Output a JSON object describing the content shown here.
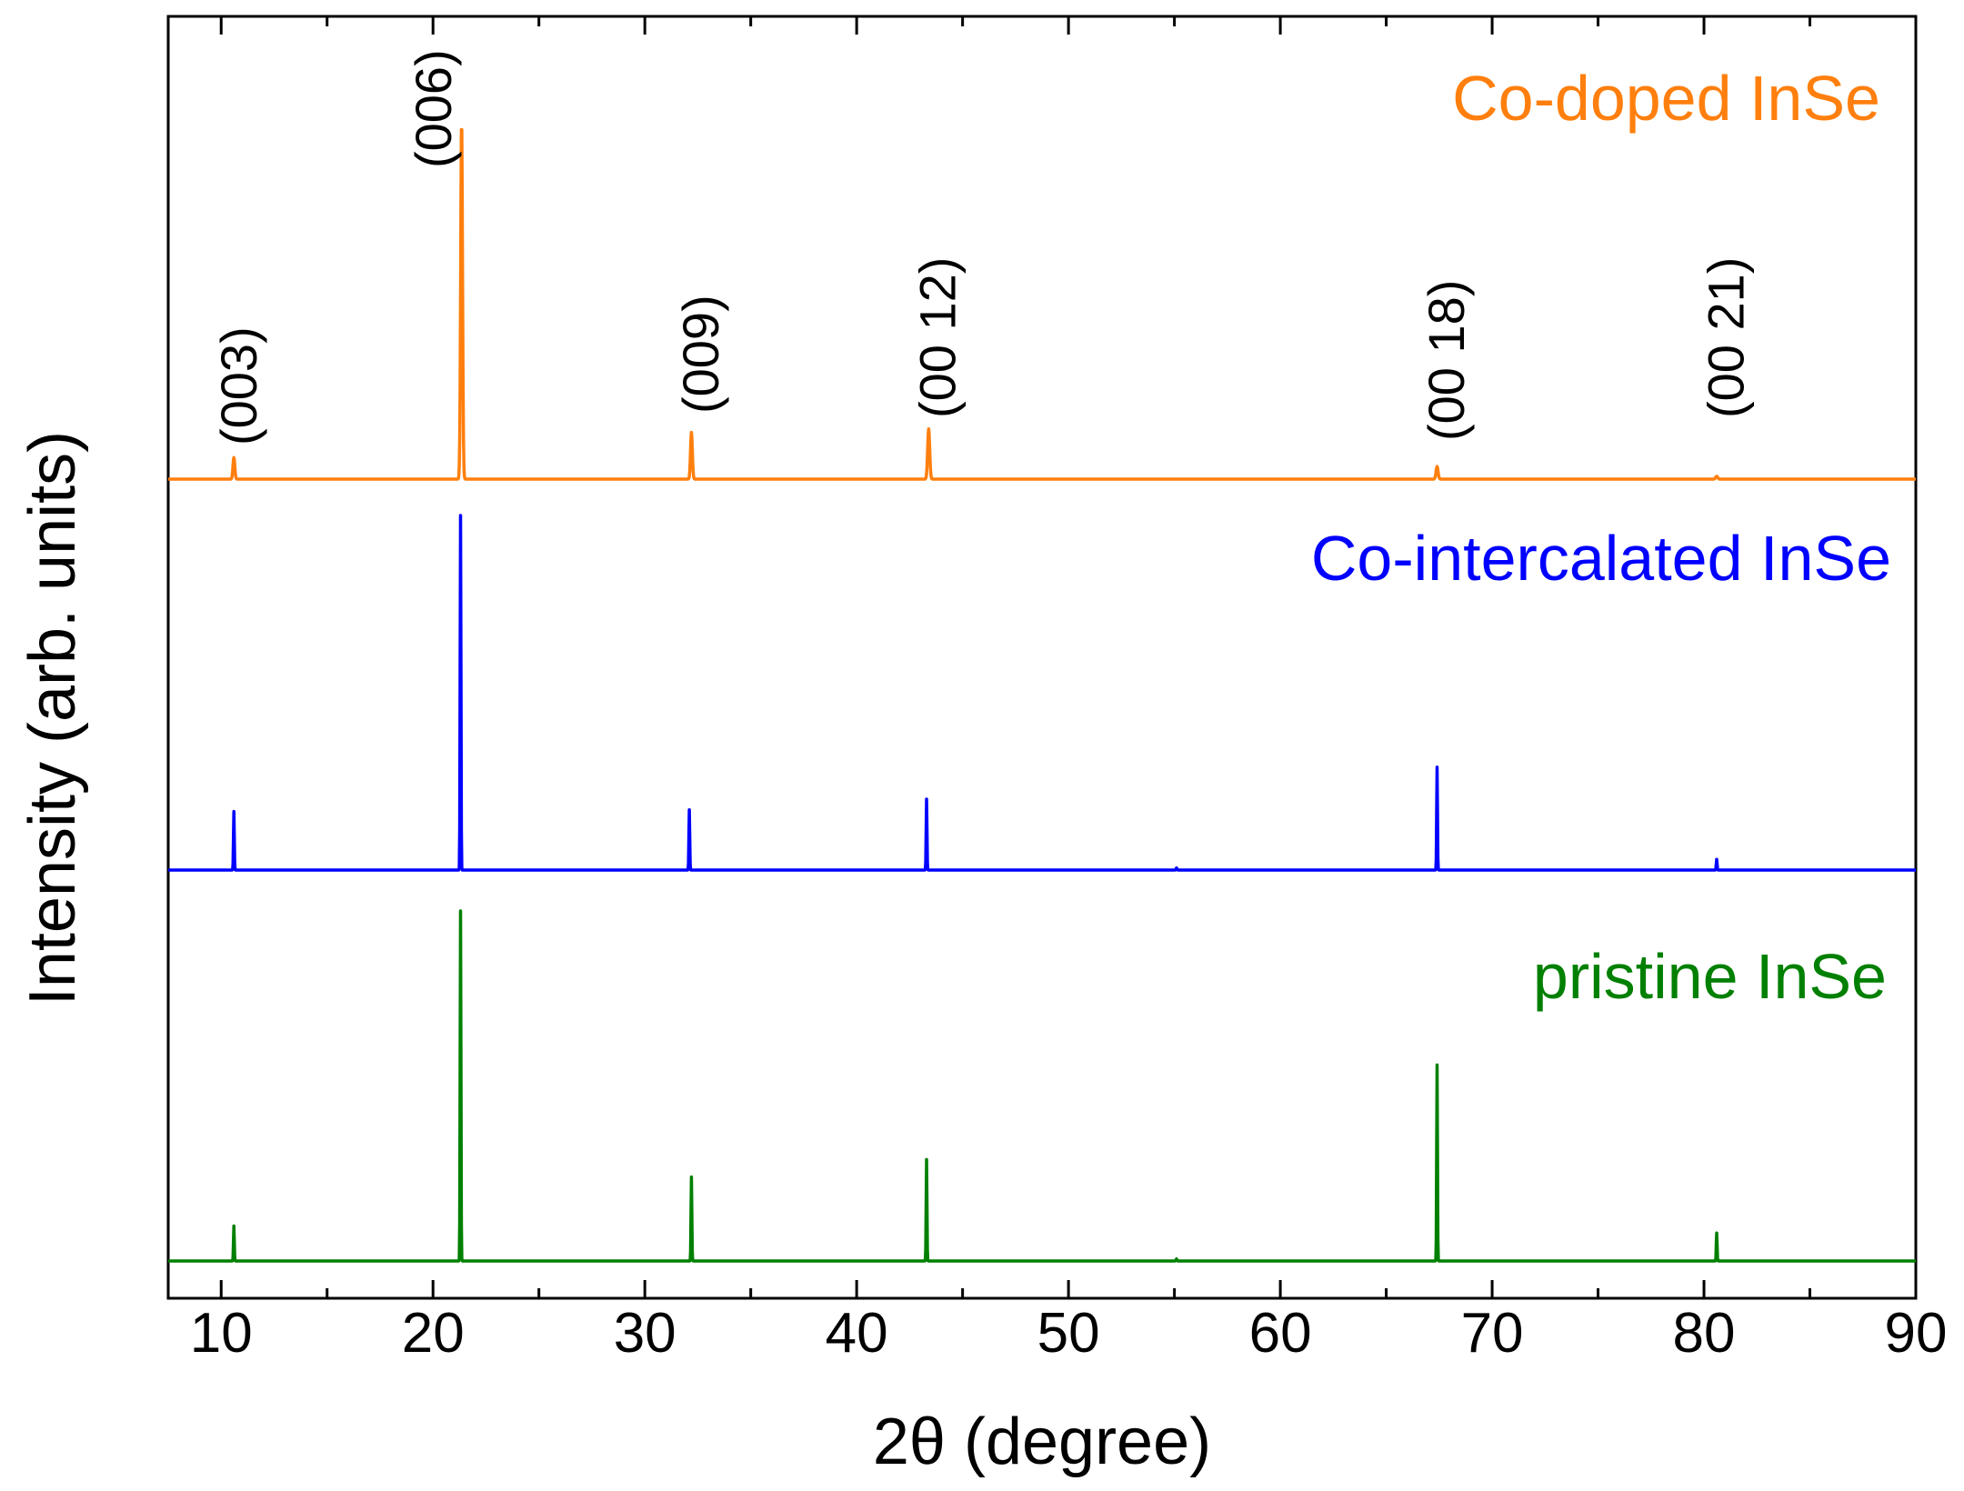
{
  "chart_data": {
    "type": "line",
    "title": "",
    "xlabel": "2θ (degree)",
    "ylabel": "Intensity (arb. units)",
    "xlim": [
      7.5,
      90
    ],
    "ylim": [
      0,
      1
    ],
    "x_ticks": [
      10,
      20,
      30,
      40,
      50,
      60,
      70,
      80,
      90
    ],
    "x_minor_ticks": [
      15,
      25,
      35,
      45,
      55,
      65,
      75,
      85
    ],
    "y_ticks": [],
    "grid": false,
    "series": [
      {
        "name": "Co-doped InSe",
        "color": "#ff7f0e",
        "stack_order": 2,
        "peaks": [
          {
            "x": 10.6,
            "h": 0.06,
            "w": 0.18
          },
          {
            "x": 21.35,
            "h": 1.0,
            "w": 0.18
          },
          {
            "x": 32.2,
            "h": 0.13,
            "w": 0.18
          },
          {
            "x": 43.4,
            "h": 0.14,
            "w": 0.2
          },
          {
            "x": 67.4,
            "h": 0.035,
            "w": 0.2
          },
          {
            "x": 80.6,
            "h": 0.008,
            "w": 0.2
          }
        ]
      },
      {
        "name": "Co-intercalated InSe",
        "color": "#0000ff",
        "stack_order": 1,
        "peaks": [
          {
            "x": 10.6,
            "h": 0.165,
            "w": 0.08
          },
          {
            "x": 21.3,
            "h": 1.0,
            "w": 0.08
          },
          {
            "x": 32.1,
            "h": 0.17,
            "w": 0.08
          },
          {
            "x": 43.3,
            "h": 0.2,
            "w": 0.08
          },
          {
            "x": 55.1,
            "h": 0.006,
            "w": 0.08
          },
          {
            "x": 67.4,
            "h": 0.29,
            "w": 0.08
          },
          {
            "x": 80.6,
            "h": 0.03,
            "w": 0.08
          }
        ]
      },
      {
        "name": "pristine InSe",
        "color": "#008000",
        "stack_order": 0,
        "peaks": [
          {
            "x": 10.6,
            "h": 0.1,
            "w": 0.08
          },
          {
            "x": 21.3,
            "h": 1.0,
            "w": 0.08
          },
          {
            "x": 32.2,
            "h": 0.24,
            "w": 0.08
          },
          {
            "x": 43.3,
            "h": 0.29,
            "w": 0.08
          },
          {
            "x": 55.1,
            "h": 0.006,
            "w": 0.08
          },
          {
            "x": 67.4,
            "h": 0.56,
            "w": 0.08
          },
          {
            "x": 80.6,
            "h": 0.08,
            "w": 0.08
          }
        ]
      }
    ],
    "annotations": [
      {
        "text": "(003)",
        "x": 10.8
      },
      {
        "text": "(006)",
        "x": 20.0
      },
      {
        "text": "(009)",
        "x": 32.6
      },
      {
        "text": "(00 12)",
        "x": 43.8
      },
      {
        "text": "(00 18)",
        "x": 67.8
      },
      {
        "text": "(00 21)",
        "x": 81.0
      }
    ]
  }
}
